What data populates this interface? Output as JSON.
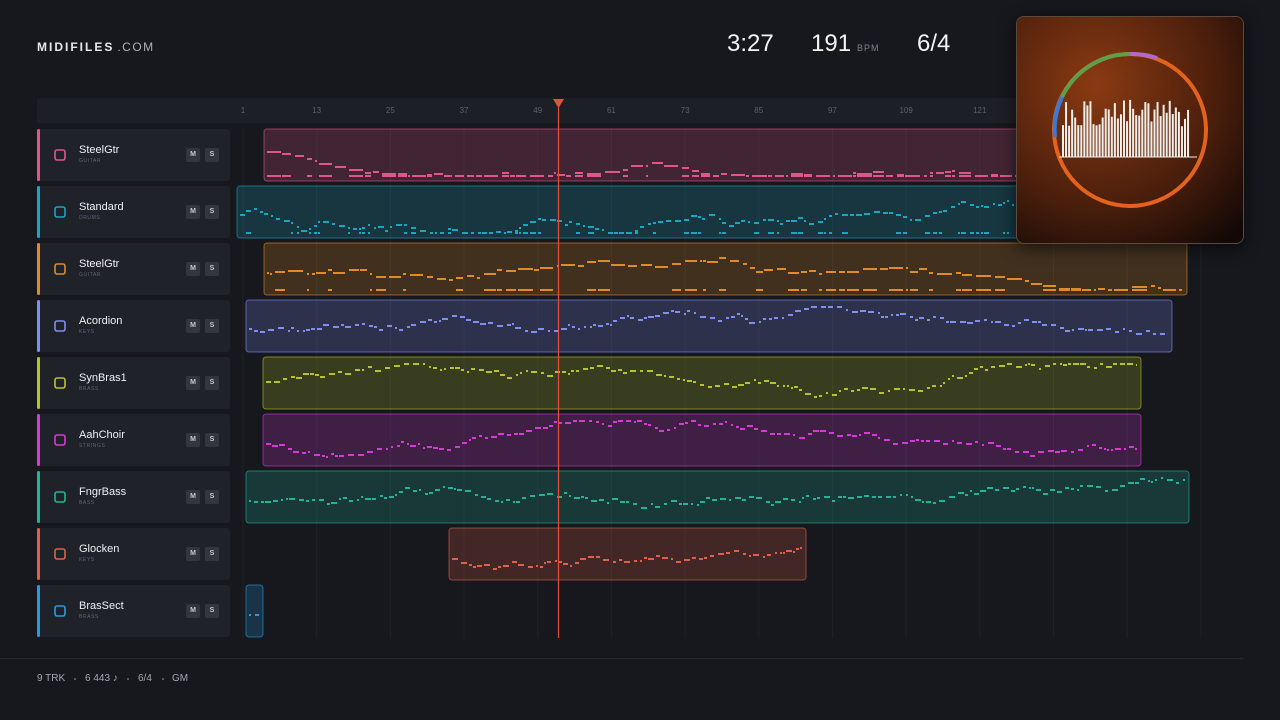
{
  "header": {
    "brand": "MIDIFILES",
    "brand_suffix": ".COM",
    "time": "3:27",
    "tempo": "191",
    "tempo_unit": "BPM",
    "meter": "6/4"
  },
  "ruler": [
    1,
    13,
    25,
    37,
    49,
    61,
    73,
    85,
    97,
    109,
    121
  ],
  "track_buttons": {
    "mute": "M",
    "solo": "S"
  },
  "tracks": [
    {
      "name": "SteelGtr",
      "category": "GUITAR"
    },
    {
      "name": "Standard",
      "category": "DRUMS"
    },
    {
      "name": "SteelGtr",
      "category": "GUITAR"
    },
    {
      "name": "Acordion",
      "category": "KEYS"
    },
    {
      "name": "SynBras1",
      "category": "BRASS"
    },
    {
      "name": "AahChoir",
      "category": "STRINGS"
    },
    {
      "name": "FngrBass",
      "category": "BASS"
    },
    {
      "name": "Glocken",
      "category": "KEYS"
    },
    {
      "name": "BrasSect",
      "category": "BRASS"
    }
  ],
  "footer": {
    "tracks": "9 TRK",
    "notes": "6 443 ♪",
    "meter": "6/4",
    "standard": "GM"
  }
}
